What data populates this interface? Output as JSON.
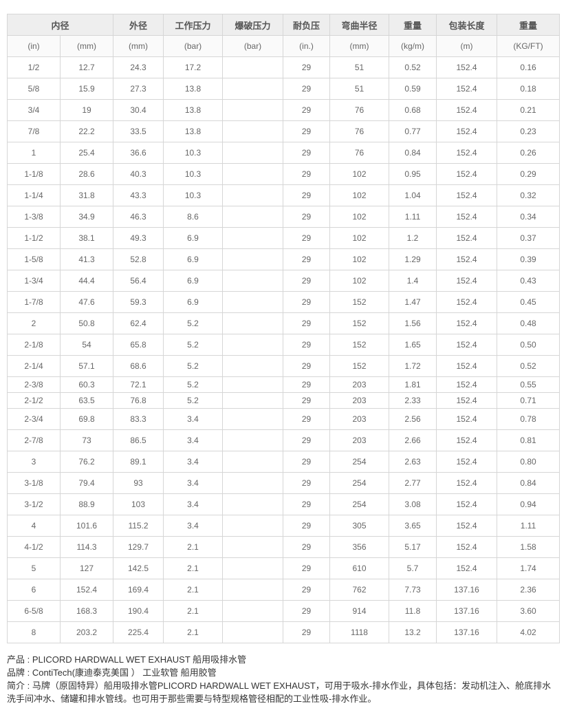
{
  "table": {
    "header_groups": [
      {
        "label": "内径",
        "colspan": 2
      },
      {
        "label": "外径",
        "colspan": 1
      },
      {
        "label": "工作压力",
        "colspan": 1
      },
      {
        "label": "爆破压力",
        "colspan": 1
      },
      {
        "label": "耐负压",
        "colspan": 1
      },
      {
        "label": "弯曲半径",
        "colspan": 1
      },
      {
        "label": "重量",
        "colspan": 1
      },
      {
        "label": "包装长度",
        "colspan": 1
      },
      {
        "label": "重量",
        "colspan": 1
      }
    ],
    "units": [
      "(in)",
      "(mm)",
      "(mm)",
      "(bar)",
      "(bar)",
      "(in.)",
      "(mm)",
      "(kg/m)",
      "(m)",
      "(KG/FT)"
    ],
    "compact_row_indices": [
      15,
      16
    ],
    "rows": [
      [
        "1/2",
        "12.7",
        "24.3",
        "17.2",
        "",
        "29",
        "51",
        "0.52",
        "152.4",
        "0.16"
      ],
      [
        "5/8",
        "15.9",
        "27.3",
        "13.8",
        "",
        "29",
        "51",
        "0.59",
        "152.4",
        "0.18"
      ],
      [
        "3/4",
        "19",
        "30.4",
        "13.8",
        "",
        "29",
        "76",
        "0.68",
        "152.4",
        "0.21"
      ],
      [
        "7/8",
        "22.2",
        "33.5",
        "13.8",
        "",
        "29",
        "76",
        "0.77",
        "152.4",
        "0.23"
      ],
      [
        "1",
        "25.4",
        "36.6",
        "10.3",
        "",
        "29",
        "76",
        "0.84",
        "152.4",
        "0.26"
      ],
      [
        "1-1/8",
        "28.6",
        "40.3",
        "10.3",
        "",
        "29",
        "102",
        "0.95",
        "152.4",
        "0.29"
      ],
      [
        "1-1/4",
        "31.8",
        "43.3",
        "10.3",
        "",
        "29",
        "102",
        "1.04",
        "152.4",
        "0.32"
      ],
      [
        "1-3/8",
        "34.9",
        "46.3",
        "8.6",
        "",
        "29",
        "102",
        "1.11",
        "152.4",
        "0.34"
      ],
      [
        "1-1/2",
        "38.1",
        "49.3",
        "6.9",
        "",
        "29",
        "102",
        "1.2",
        "152.4",
        "0.37"
      ],
      [
        "1-5/8",
        "41.3",
        "52.8",
        "6.9",
        "",
        "29",
        "102",
        "1.29",
        "152.4",
        "0.39"
      ],
      [
        "1-3/4",
        "44.4",
        "56.4",
        "6.9",
        "",
        "29",
        "102",
        "1.4",
        "152.4",
        "0.43"
      ],
      [
        "1-7/8",
        "47.6",
        "59.3",
        "6.9",
        "",
        "29",
        "152",
        "1.47",
        "152.4",
        "0.45"
      ],
      [
        "2",
        "50.8",
        "62.4",
        "5.2",
        "",
        "29",
        "152",
        "1.56",
        "152.4",
        "0.48"
      ],
      [
        "2-1/8",
        "54",
        "65.8",
        "5.2",
        "",
        "29",
        "152",
        "1.65",
        "152.4",
        "0.50"
      ],
      [
        "2-1/4",
        "57.1",
        "68.6",
        "5.2",
        "",
        "29",
        "152",
        "1.72",
        "152.4",
        "0.52"
      ],
      [
        "2-3/8",
        "60.3",
        "72.1",
        "5.2",
        "",
        "29",
        "203",
        "1.81",
        "152.4",
        "0.55"
      ],
      [
        "2-1/2",
        "63.5",
        "76.8",
        "5.2",
        "",
        "29",
        "203",
        "2.33",
        "152.4",
        "0.71"
      ],
      [
        "2-3/4",
        "69.8",
        "83.3",
        "3.4",
        "",
        "29",
        "203",
        "2.56",
        "152.4",
        "0.78"
      ],
      [
        "2-7/8",
        "73",
        "86.5",
        "3.4",
        "",
        "29",
        "203",
        "2.66",
        "152.4",
        "0.81"
      ],
      [
        "3",
        "76.2",
        "89.1",
        "3.4",
        "",
        "29",
        "254",
        "2.63",
        "152.4",
        "0.80"
      ],
      [
        "3-1/8",
        "79.4",
        "93",
        "3.4",
        "",
        "29",
        "254",
        "2.77",
        "152.4",
        "0.84"
      ],
      [
        "3-1/2",
        "88.9",
        "103",
        "3.4",
        "",
        "29",
        "254",
        "3.08",
        "152.4",
        "0.94"
      ],
      [
        "4",
        "101.6",
        "115.2",
        "3.4",
        "",
        "29",
        "305",
        "3.65",
        "152.4",
        "1.11"
      ],
      [
        "4-1/2",
        "114.3",
        "129.7",
        "2.1",
        "",
        "29",
        "356",
        "5.17",
        "152.4",
        "1.58"
      ],
      [
        "5",
        "127",
        "142.5",
        "2.1",
        "",
        "29",
        "610",
        "5.7",
        "152.4",
        "1.74"
      ],
      [
        "6",
        "152.4",
        "169.4",
        "2.1",
        "",
        "29",
        "762",
        "7.73",
        "137.16",
        "2.36"
      ],
      [
        "6-5/8",
        "168.3",
        "190.4",
        "2.1",
        "",
        "29",
        "914",
        "11.8",
        "137.16",
        "3.60"
      ],
      [
        "8",
        "203.2",
        "225.4",
        "2.1",
        "",
        "29",
        "1118",
        "13.2",
        "137.16",
        "4.02"
      ]
    ]
  },
  "footer": {
    "product": "产品 : PLICORD HARDWALL WET EXHAUST 船用吸排水管",
    "brand": "品牌 : ContiTech(康迪泰克美国 ）  工业软管 船用胶管",
    "intro": "简介 : 马牌（原固特异）船用吸排水管PLICORD HARDWALL WET EXHAUST，可用于吸水-排水作业，具体包括：发动机注入、舱底排水洗手间冲水、储罐和排水管线。也可用于那些需要与特型规格管径相配的工业性吸-排水作业。"
  },
  "colors": {
    "header_bg": "#eeeeee",
    "unit_row_bg": "#fafafa",
    "grid_line": "#d6d6d6",
    "cell_text": "#666666",
    "footer_text": "#333333"
  }
}
